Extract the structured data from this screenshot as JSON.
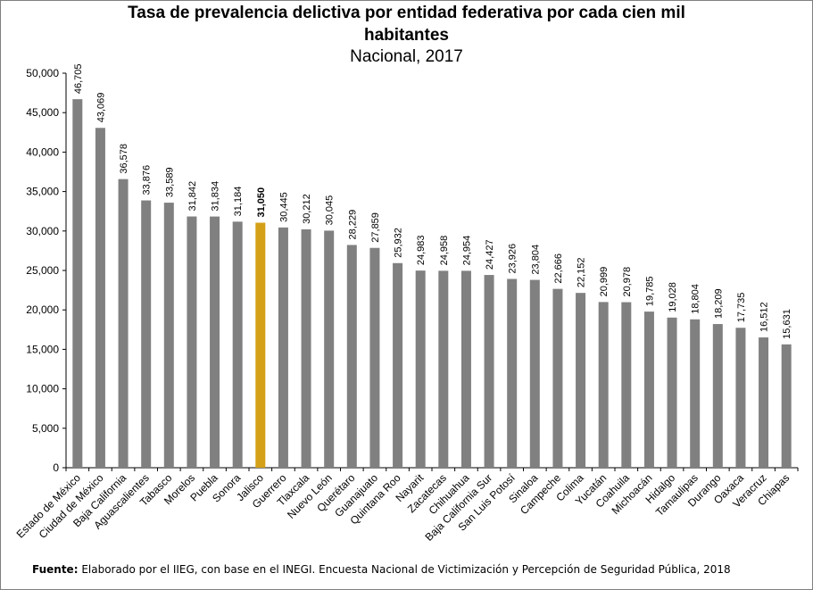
{
  "title_line1": "Tasa de prevalencia delictiva por entidad federativa por cada cien mil",
  "title_line2": "habitantes",
  "subtitle": "Nacional, 2017",
  "footer": {
    "label": "Fuente:",
    "text": " Elaborado por el IIEG, con base en el INEGI. Encuesta Nacional de Victimización y Percepción de Seguridad Pública, 2018"
  },
  "colors": {
    "bar": "#808080",
    "highlight": "#d4a017",
    "axis": "#000000",
    "frame": "#7f7f7f"
  },
  "chart_data": {
    "type": "bar",
    "title": "Tasa de prevalencia delictiva por entidad federativa por cada cien mil habitantes",
    "subtitle": "Nacional, 2017",
    "categories": [
      "Estado de México",
      "Ciudad de México",
      "Baja California",
      "Aguascalientes",
      "Tabasco",
      "Morelos",
      "Puebla",
      "Sonora",
      "Jalisco",
      "Guerrero",
      "Tlaxcala",
      "Nuevo León",
      "Querétaro",
      "Guanajuato",
      "Quintana Roo",
      "Nayarit",
      "Zacatecas",
      "Chihuahua",
      "Baja California Sur",
      "San Luis Potosí",
      "Sinaloa",
      "Campeche",
      "Colima",
      "Yucatán",
      "Coahuila",
      "Michoacán",
      "Hidalgo",
      "Tamaulipas",
      "Durango",
      "Oaxaca",
      "Veracruz",
      "Chiapas"
    ],
    "values": [
      46705,
      43069,
      36578,
      33876,
      33589,
      31842,
      31834,
      31184,
      31050,
      30445,
      30212,
      30045,
      28229,
      27859,
      25932,
      24983,
      24958,
      24954,
      24427,
      23926,
      23804,
      22666,
      22152,
      20999,
      20978,
      19785,
      19028,
      18804,
      18209,
      17735,
      16512,
      15631
    ],
    "value_labels": [
      "46,705",
      "43,069",
      "36,578",
      "33,876",
      "33,589",
      "31,842",
      "31,834",
      "31,184",
      "31,050",
      "30,445",
      "30,212",
      "30,045",
      "28,229",
      "27,859",
      "25,932",
      "24,983",
      "24,958",
      "24,954",
      "24,427",
      "23,926",
      "23,804",
      "22,666",
      "22,152",
      "20,999",
      "20,978",
      "19,785",
      "19,028",
      "18,804",
      "18,209",
      "17,735",
      "16,512",
      "15,631"
    ],
    "highlight": "Jalisco",
    "ylim": [
      0,
      50000
    ],
    "yticks": [
      0,
      5000,
      10000,
      15000,
      20000,
      25000,
      30000,
      35000,
      40000,
      45000,
      50000
    ],
    "ytick_labels": [
      "0",
      "5,000",
      "10,000",
      "15,000",
      "20,000",
      "25,000",
      "30,000",
      "35,000",
      "40,000",
      "45,000",
      "50,000"
    ],
    "grid": false,
    "xlabel": "",
    "ylabel": ""
  }
}
